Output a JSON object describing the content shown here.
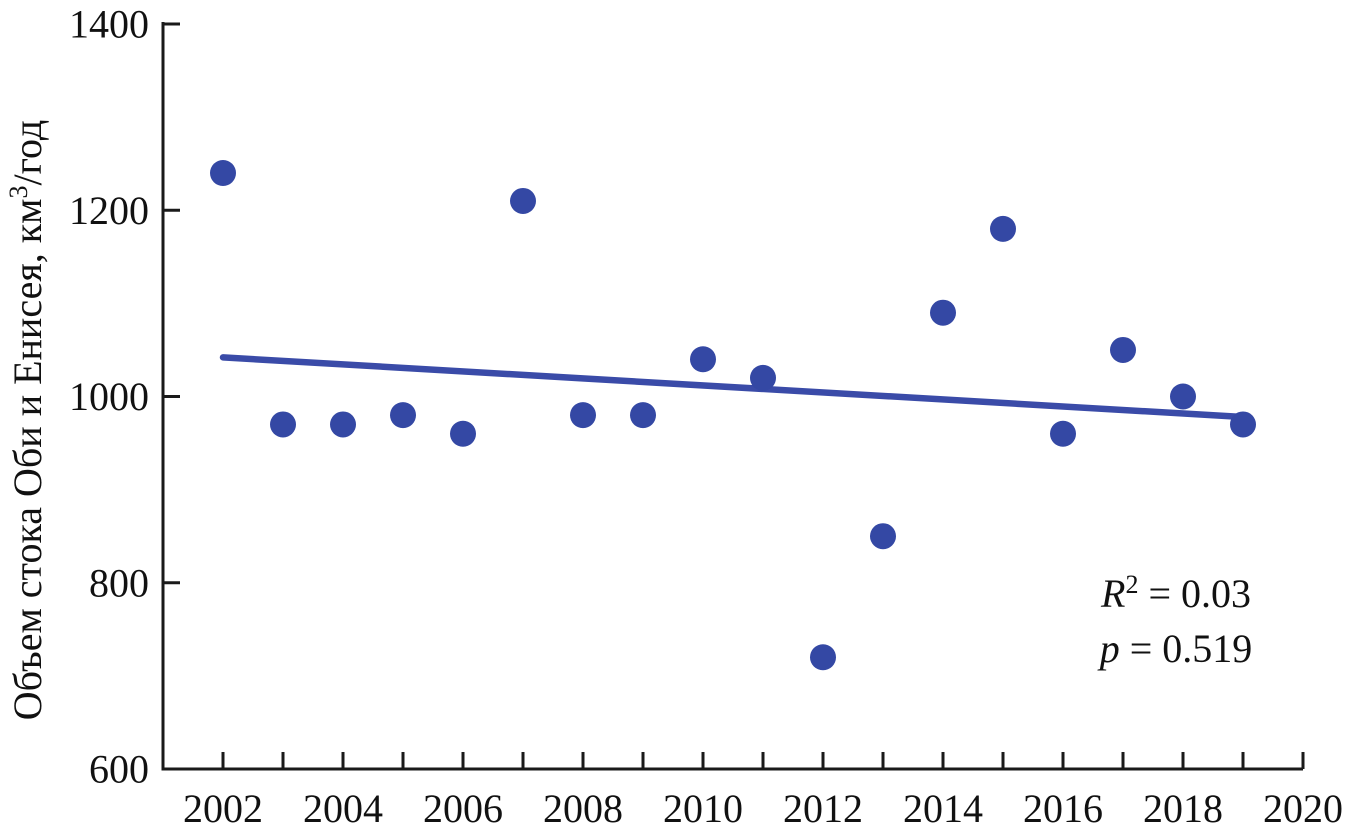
{
  "figure": {
    "background": "#ffffff",
    "axis_color": "#1a1a1a",
    "point_color": "#3448a4",
    "trend_color": "#3a4ba8"
  },
  "y_axis": {
    "title_prefix": "Объем стока Оби и Енисея, км",
    "title_sup": "3",
    "title_suffix": "/год"
  },
  "annotation": {
    "r2_var": "R",
    "r2_sup": "2",
    "r2_rest": " = 0.03",
    "p_var": "p",
    "p_rest": " = 0.519"
  },
  "chart_data": {
    "type": "scatter",
    "title": "",
    "xlabel": "",
    "ylabel": "Объем стока Оби и Енисея, км³/год",
    "x": [
      2002,
      2003,
      2004,
      2005,
      2006,
      2007,
      2008,
      2009,
      2010,
      2011,
      2012,
      2013,
      2014,
      2015,
      2016,
      2017,
      2018,
      2019
    ],
    "y": [
      1240,
      970,
      970,
      980,
      960,
      1210,
      980,
      980,
      1040,
      1020,
      720,
      850,
      1090,
      1180,
      960,
      1050,
      1000,
      970
    ],
    "xlim": [
      2001,
      2020
    ],
    "ylim": [
      600,
      1400
    ],
    "x_minor_ticks": [
      2002,
      2003,
      2004,
      2005,
      2006,
      2007,
      2008,
      2009,
      2010,
      2011,
      2012,
      2013,
      2014,
      2015,
      2016,
      2017,
      2018,
      2019,
      2020
    ],
    "x_tick_labels": [
      "2002",
      "2004",
      "2006",
      "2008",
      "2010",
      "2012",
      "2014",
      "2016",
      "2018",
      "2020"
    ],
    "x_tick_label_years": [
      2002,
      2004,
      2006,
      2008,
      2010,
      2012,
      2014,
      2016,
      2018,
      2020
    ],
    "y_ticks": [
      600,
      800,
      1000,
      1200,
      1400
    ],
    "y_tick_labels": [
      "600",
      "800",
      "1000",
      "1200",
      "1400"
    ],
    "grid": false,
    "legend": false,
    "trendline": {
      "x1": 2002,
      "y1": 1042,
      "x2": 2019,
      "y2": 978
    },
    "r_squared": 0.03,
    "p_value": 0.519
  }
}
